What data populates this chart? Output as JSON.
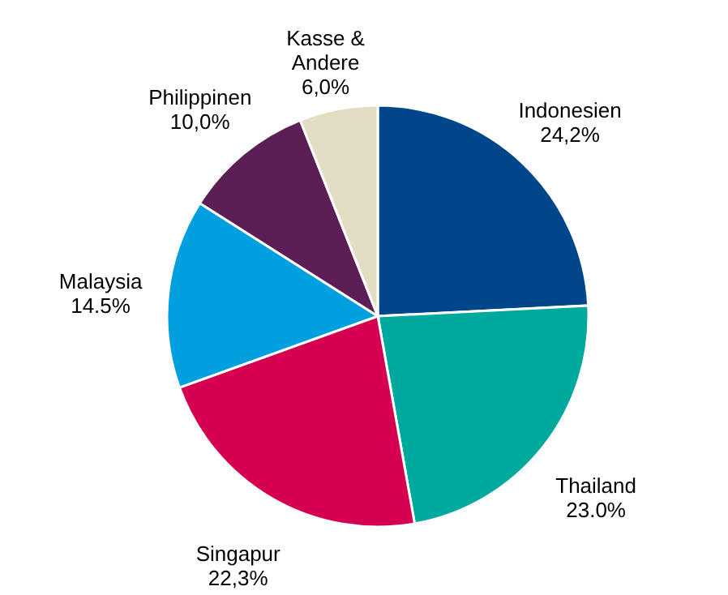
{
  "chart_data": {
    "type": "pie",
    "categories": [
      "Indonesien",
      "Thailand",
      "Singapur",
      "Malaysia",
      "Philippinen",
      "Kasse &\nAndere"
    ],
    "values": [
      24.2,
      23.0,
      22.3,
      14.5,
      10.0,
      6.0
    ],
    "value_labels": [
      "24,2%",
      "23.0%",
      "22,3%",
      "14.5%",
      "10,0%",
      "6,0%"
    ],
    "colors": [
      "#00468b",
      "#00a99d",
      "#d5004f",
      "#009fe0",
      "#5b1f56",
      "#e3dec3"
    ]
  }
}
